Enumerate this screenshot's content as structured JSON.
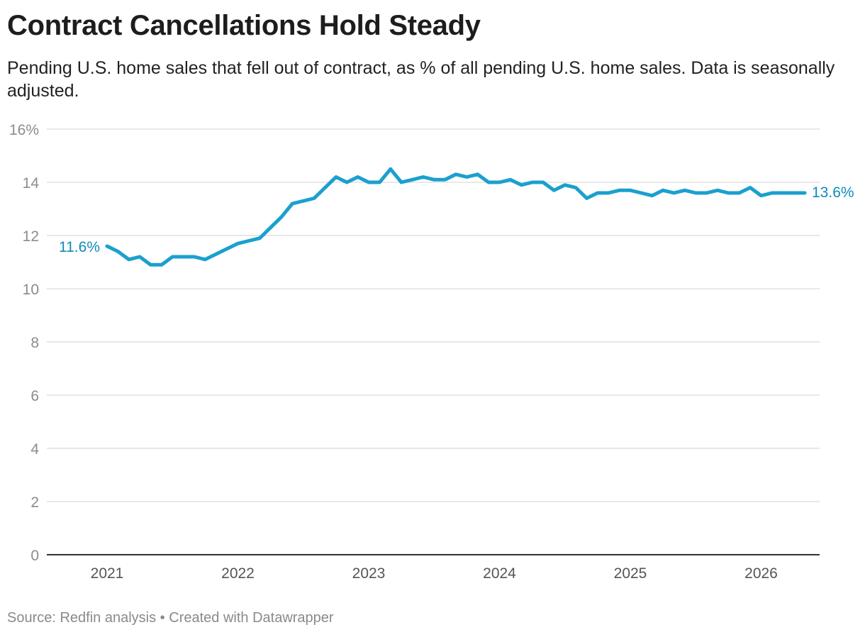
{
  "title": "Contract Cancellations Hold Steady",
  "subtitle": "Pending U.S. home sales that fell out of contract, as % of all pending U.S. home sales. Data is seasonally adjusted.",
  "footer": {
    "source": "Source: Redfin analysis",
    "separator": "•",
    "credit": "Created with Datawrapper"
  },
  "colors": {
    "line": "#1ba0ce",
    "label": "#0f8ab8",
    "grid": "#e0e0e0",
    "axis_text": "#8c8c8c",
    "baseline": "#333333"
  },
  "chart_data": {
    "type": "line",
    "title": "",
    "xlabel": "",
    "ylabel": "",
    "ylim": [
      0,
      16
    ],
    "y_ticks": [
      0,
      2,
      4,
      6,
      8,
      10,
      12,
      14,
      16
    ],
    "y_tick_labels": [
      "0",
      "2",
      "4",
      "6",
      "8",
      "10",
      "12",
      "14",
      "16%"
    ],
    "x_ticks": [
      2021,
      2022,
      2023,
      2024,
      2025,
      2026
    ],
    "x_tick_labels": [
      "2021",
      "2022",
      "2023",
      "2024",
      "2025",
      "2026"
    ],
    "grid": true,
    "series": [
      {
        "x": [
          "2021-01",
          "2021-02",
          "2021-03",
          "2021-04",
          "2021-05",
          "2021-06",
          "2021-07",
          "2021-08",
          "2021-09",
          "2021-10",
          "2021-11",
          "2021-12",
          "2022-01",
          "2022-02",
          "2022-03",
          "2022-04",
          "2022-05",
          "2022-06",
          "2022-07",
          "2022-08",
          "2022-09",
          "2022-10",
          "2022-11",
          "2022-12",
          "2023-01",
          "2023-02",
          "2023-03",
          "2023-04",
          "2023-05",
          "2023-06",
          "2023-07",
          "2023-08",
          "2023-09",
          "2023-10",
          "2023-11",
          "2023-12",
          "2024-01",
          "2024-02",
          "2024-03",
          "2024-04",
          "2024-05",
          "2024-06",
          "2024-07",
          "2024-08",
          "2024-09",
          "2024-10",
          "2024-11",
          "2024-12",
          "2025-01",
          "2025-02",
          "2025-03",
          "2025-04",
          "2025-05",
          "2025-06",
          "2025-07",
          "2025-08",
          "2025-09",
          "2025-10",
          "2025-11",
          "2025-12",
          "2026-01",
          "2026-02",
          "2026-03",
          "2026-04",
          "2026-05"
        ],
        "values": [
          11.6,
          11.4,
          11.1,
          11.2,
          10.9,
          10.9,
          11.2,
          11.2,
          11.2,
          11.1,
          11.3,
          11.5,
          11.7,
          11.8,
          11.9,
          12.3,
          12.7,
          13.2,
          13.3,
          13.4,
          13.8,
          14.2,
          14.0,
          14.2,
          14.0,
          14.0,
          14.5,
          14.0,
          14.1,
          14.2,
          14.1,
          14.1,
          14.3,
          14.2,
          14.3,
          14.0,
          14.0,
          14.1,
          13.9,
          14.0,
          14.0,
          13.7,
          13.9,
          13.8,
          13.4,
          13.6,
          13.6,
          13.7,
          13.7,
          13.6,
          13.5,
          13.7,
          13.6,
          13.7,
          13.6,
          13.6,
          13.7,
          13.6,
          13.6,
          13.8,
          13.5,
          13.6,
          13.6,
          13.6,
          13.6
        ]
      }
    ],
    "annotations": {
      "first": "11.6%",
      "last": "13.6%"
    }
  }
}
